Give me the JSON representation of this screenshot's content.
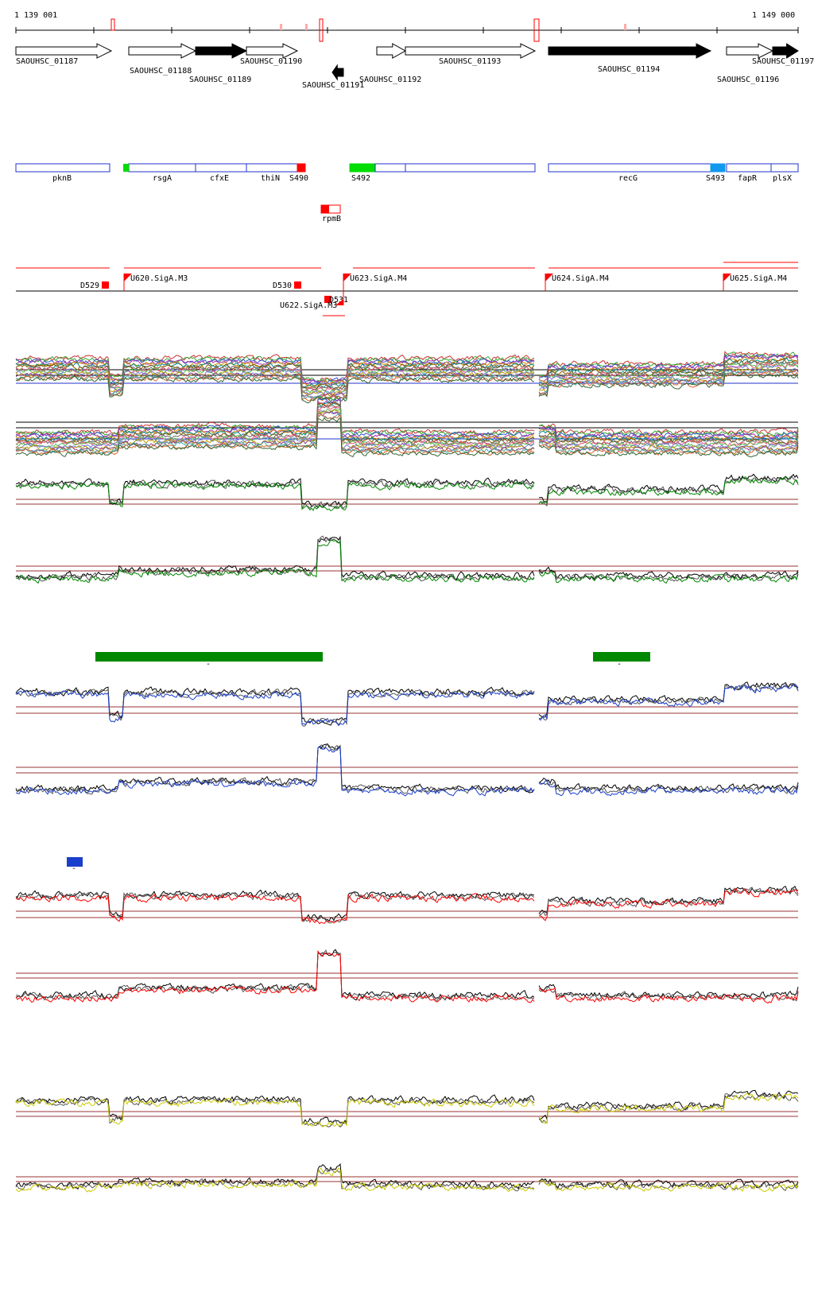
{
  "coords": {
    "start": "1 139 001",
    "end": "1 149 000"
  },
  "colors": {
    "axis": "#000000",
    "brown_line": "#993333",
    "red": "#ff0000",
    "green": "#008800",
    "bright_green": "#00dd00",
    "blue": "#1a3fcc",
    "outline_blue": "#2233cc",
    "yellow": "#cccc00",
    "cyan": "#1199ee",
    "pink": "#ffaaaa"
  },
  "genes": [
    {
      "id": "g1187",
      "label": "SAOUHSC_01187",
      "strand": "+",
      "fill": "white"
    },
    {
      "id": "g1188",
      "label": "SAOUHSC_01188",
      "strand": "+",
      "fill": "white"
    },
    {
      "id": "g1189",
      "label": "SAOUHSC_01189",
      "strand": "+",
      "fill": "black"
    },
    {
      "id": "g1190",
      "label": "SAOUHSC_01190",
      "strand": "+",
      "fill": "white"
    },
    {
      "id": "g1191",
      "label": "SAOUHSC_01191",
      "strand": "-",
      "fill": "black"
    },
    {
      "id": "g1192",
      "label": "SAOUHSC_01192",
      "strand": "+",
      "fill": "white"
    },
    {
      "id": "g1193",
      "label": "SAOUHSC_01193",
      "strand": "+",
      "fill": "white"
    },
    {
      "id": "g1194",
      "label": "SAOUHSC_01194",
      "strand": "+",
      "fill": "black"
    },
    {
      "id": "g1196",
      "label": "SAOUHSC_01196",
      "strand": "+",
      "fill": "white"
    },
    {
      "id": "g1197",
      "label": "SAOUHSC_01197",
      "strand": "+",
      "fill": "black"
    }
  ],
  "annotations": [
    {
      "label": "pknB",
      "kind": "gene"
    },
    {
      "label": "rsgA",
      "kind": "gene"
    },
    {
      "label": "cfxE",
      "kind": "gene"
    },
    {
      "label": "thiN",
      "kind": "gene"
    },
    {
      "label": "S490",
      "kind": "segment"
    },
    {
      "label": "S492",
      "kind": "segment"
    },
    {
      "label": "recG",
      "kind": "gene"
    },
    {
      "label": "S493",
      "kind": "segment"
    },
    {
      "label": "fapR",
      "kind": "gene"
    },
    {
      "label": "plsX",
      "kind": "gene"
    },
    {
      "label": "rpmB",
      "kind": "gene"
    }
  ],
  "promoters": [
    {
      "label": "D529",
      "kind": "down"
    },
    {
      "label": "U620.SigA.M3",
      "kind": "up"
    },
    {
      "label": "D530",
      "kind": "down"
    },
    {
      "label": "D531",
      "kind": "down"
    },
    {
      "label": "U622.SigA.M3",
      "kind": "up"
    },
    {
      "label": "U623.SigA.M4",
      "kind": "up"
    },
    {
      "label": "U624.SigA.M4",
      "kind": "up"
    },
    {
      "label": "U625.SigA.M4",
      "kind": "up"
    }
  ],
  "condition_markers": [
    {
      "label": "-",
      "color": "green"
    },
    {
      "label": "-",
      "color": "green"
    },
    {
      "label": "-",
      "color": "blue"
    }
  ],
  "chart_data": {
    "type": "line",
    "title": "",
    "x_range": [
      1139001,
      1149000
    ],
    "tracks": [
      {
        "name": "",
        "color": "multi",
        "strand": "+"
      },
      {
        "name": "",
        "color": "multi",
        "strand": "-"
      },
      {
        "name": "",
        "color": "green",
        "strand": "+"
      },
      {
        "name": "",
        "color": "green",
        "strand": "-"
      },
      {
        "name": "",
        "color": "blue",
        "strand": "+"
      },
      {
        "name": "",
        "color": "blue",
        "strand": "-"
      },
      {
        "name": "",
        "color": "red",
        "strand": "+"
      },
      {
        "name": "",
        "color": "red",
        "strand": "-"
      },
      {
        "name": "",
        "color": "yellow",
        "strand": "+"
      },
      {
        "name": "",
        "color": "yellow",
        "strand": "-"
      }
    ]
  }
}
